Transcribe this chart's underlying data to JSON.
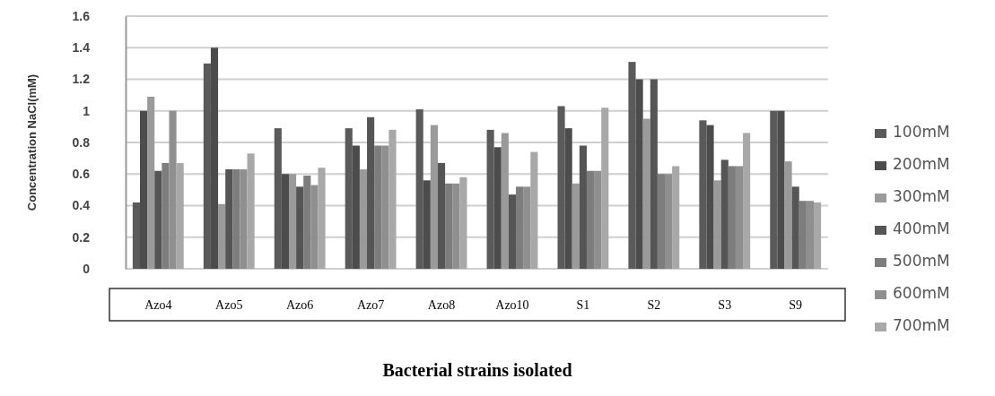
{
  "chart_data": {
    "type": "bar",
    "xlabel": "Bacterial strains isolated",
    "ylabel": "Concentration NaCl(mM)",
    "categories": [
      "Azo4",
      "Azo5",
      "Azo6",
      "Azo7",
      "Azo8",
      "Azo10",
      "S1",
      "S2",
      "S3",
      "S9"
    ],
    "series": [
      {
        "name": "100mM",
        "color": "#5a5a5a",
        "values": [
          0.42,
          1.3,
          0.89,
          0.89,
          1.01,
          0.88,
          1.03,
          1.31,
          0.94,
          1.0
        ]
      },
      {
        "name": "200mM",
        "color": "#4c4c4c",
        "values": [
          1.0,
          1.4,
          0.6,
          0.78,
          0.56,
          0.77,
          0.89,
          1.2,
          0.91,
          1.0
        ]
      },
      {
        "name": "300mM",
        "color": "#9a9a9a",
        "values": [
          1.09,
          0.41,
          0.6,
          0.63,
          0.91,
          0.86,
          0.54,
          0.95,
          0.56,
          0.68
        ]
      },
      {
        "name": "400mM",
        "color": "#555555",
        "values": [
          0.62,
          0.63,
          0.52,
          0.96,
          0.67,
          0.47,
          0.78,
          1.2,
          0.69,
          0.52
        ]
      },
      {
        "name": "500mM",
        "color": "#7d7d7d",
        "values": [
          0.67,
          0.63,
          0.59,
          0.78,
          0.54,
          0.52,
          0.62,
          0.6,
          0.65,
          0.43
        ]
      },
      {
        "name": "600mM",
        "color": "#8f8f8f",
        "values": [
          1.0,
          0.63,
          0.53,
          0.78,
          0.54,
          0.52,
          0.62,
          0.6,
          0.65,
          0.43
        ]
      },
      {
        "name": "700mM",
        "color": "#a8a8a8",
        "values": [
          0.67,
          0.73,
          0.64,
          0.88,
          0.58,
          0.74,
          1.02,
          0.65,
          0.86,
          0.42
        ]
      }
    ],
    "ylim": [
      0,
      1.6
    ],
    "yticks": [
      0,
      0.2,
      0.4,
      0.6,
      0.8,
      1,
      1.2,
      1.4,
      1.6
    ],
    "grid": "y",
    "legend": "right"
  }
}
